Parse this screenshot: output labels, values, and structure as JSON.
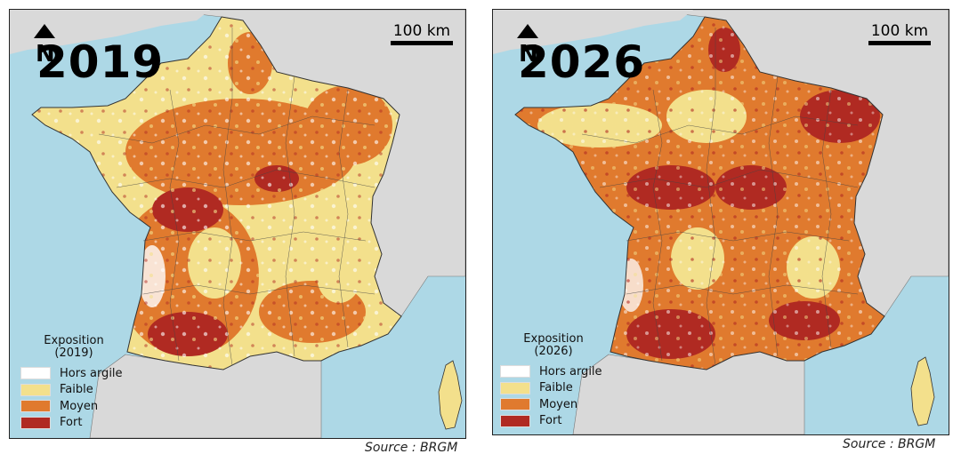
{
  "panels": [
    {
      "year": "2019",
      "scale_label": "100 km",
      "legend_title_line1": "Exposition",
      "legend_title_line2": "(2019)",
      "source": "Source : BRGM"
    },
    {
      "year": "2026",
      "scale_label": "100 km",
      "legend_title_line1": "Exposition",
      "legend_title_line2": "(2026)",
      "source": "Source : BRGM"
    }
  ],
  "legend": [
    {
      "label": "Hors argile",
      "color": "#ffffff"
    },
    {
      "label": "Faible",
      "color": "#f3e08c"
    },
    {
      "label": "Moyen",
      "color": "#e07a2e"
    },
    {
      "label": "Fort",
      "color": "#b02a22"
    }
  ],
  "colors": {
    "sea": "#add8e6",
    "neighbours": "#d9d9d9",
    "border": "#333333"
  },
  "icons": [
    "north-arrow-icon"
  ]
}
